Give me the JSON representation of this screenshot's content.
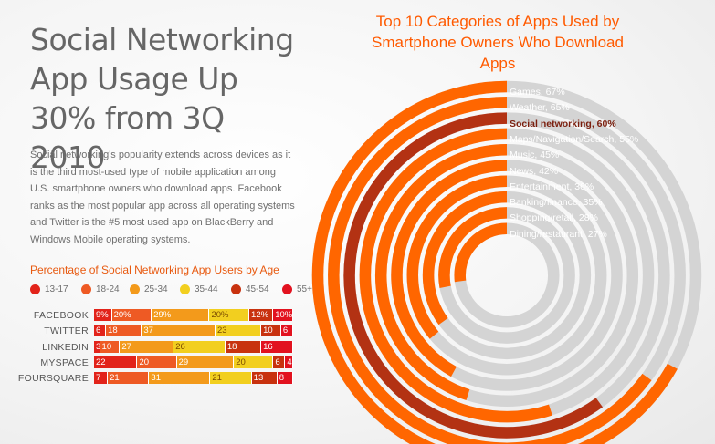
{
  "headline": "Social Networking App Usage Up 30% from 3Q 2010",
  "intro": "Social networking's popularity extends across devices as it is the third most-used type of mobile application among U.S. smartphone owners who download apps. Facebook ranks as the most popular app across all operating systems and Twitter is the #5 most used app on BlackBerry and Windows Mobile operating systems.",
  "colors": {
    "orange": "#ff6600",
    "dark_red": "#b33213",
    "gray_track": "#d4d4d4",
    "title_orange": "#ff5a00"
  },
  "chart_data": [
    {
      "type": "bar",
      "orientation": "horizontal",
      "stacked": true,
      "title": "Percentage of Social Networking App Users by Age",
      "categories": [
        "FACEBOOK",
        "TWITTER",
        "LINKEDIN",
        "MYSPACE",
        "FOURSQUARE"
      ],
      "legend_position": "top",
      "series": [
        {
          "name": "13-17",
          "color": "#e2231a",
          "values": [
            9,
            6,
            3,
            22,
            7
          ],
          "labels": [
            "9%",
            "6",
            "3",
            "22",
            "7"
          ]
        },
        {
          "name": "18-24",
          "color": "#ee5a24",
          "values": [
            20,
            18,
            10,
            20,
            21
          ],
          "labels": [
            "20%",
            "18",
            "10",
            "20",
            "21"
          ]
        },
        {
          "name": "25-34",
          "color": "#f39a1b",
          "values": [
            29,
            37,
            27,
            29,
            31
          ],
          "labels": [
            "29%",
            "37",
            "27",
            "29",
            "31"
          ]
        },
        {
          "name": "35-44",
          "color": "#f2cf1f",
          "values": [
            20,
            23,
            26,
            20,
            21
          ],
          "labels": [
            "20%",
            "23",
            "26",
            "20",
            "21"
          ]
        },
        {
          "name": "45-54",
          "color": "#c8320f",
          "values": [
            12,
            10,
            18,
            6,
            13
          ],
          "labels": [
            "12%",
            "10",
            "18",
            "6",
            "13"
          ]
        },
        {
          "name": "55+",
          "color": "#e2121f",
          "values": [
            10,
            6,
            16,
            4,
            8
          ],
          "labels": [
            "10%",
            "6",
            "16",
            "4",
            "8"
          ]
        }
      ]
    },
    {
      "type": "pie",
      "variant": "concentric-rings",
      "title": "Top 10 Categories of Apps Used by Smartphone Owners Who Download Apps",
      "categories": [
        "Games",
        "Weather",
        "Social networking",
        "Maps/Navigation/Search",
        "Music",
        "News",
        "Entertainment",
        "Banking/finance",
        "Shopping/retail",
        "Dining/restaurant"
      ],
      "values": [
        67,
        65,
        60,
        55,
        45,
        42,
        36,
        35,
        28,
        27
      ],
      "labels": [
        "Games, 67%",
        "Weather, 65%",
        "Social networking, 60%",
        "Maps/Navigation/Search, 55%",
        "Music, 45%",
        "News, 42%",
        "Entertainment, 36%",
        "Banking/finance, 35%",
        "Shopping/retail, 28%",
        "Dining/restaurant, 27%"
      ],
      "highlight": "Social networking"
    }
  ]
}
